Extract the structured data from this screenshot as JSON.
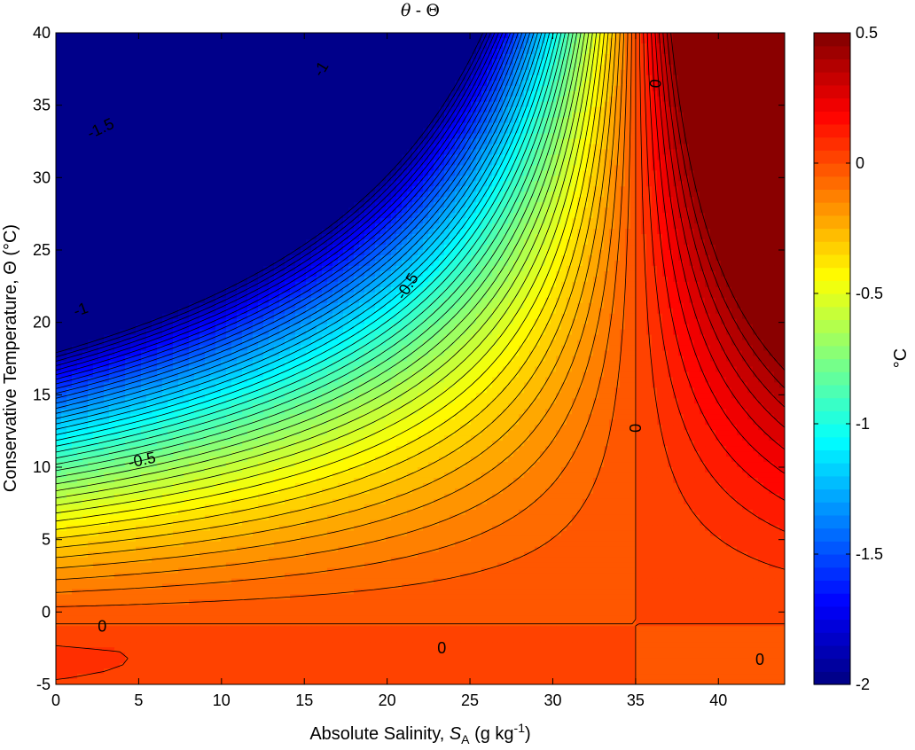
{
  "chart_data": {
    "type": "heatmap",
    "title_symbol_left": "θ",
    "title_separator": " - ",
    "title_symbol_right": "Θ",
    "xlabel_text": "Absolute Salinity, ",
    "xlabel_symbol": "S",
    "xlabel_subscript": "A",
    "xlabel_unit_open": " (g kg",
    "xlabel_superscript": "-1",
    "xlabel_unit_close": ")",
    "ylabel": "Conservative Temperature, Θ (°C)",
    "colorbar_label": "°C",
    "xlim": [
      0,
      44
    ],
    "ylim": [
      -5,
      40
    ],
    "clim": [
      -2,
      0.5
    ],
    "x_ticks": [
      "0",
      "5",
      "10",
      "15",
      "20",
      "25",
      "30",
      "35",
      "40"
    ],
    "y_ticks": [
      "-5",
      "0",
      "5",
      "10",
      "15",
      "20",
      "25",
      "30",
      "35",
      "40"
    ],
    "colorbar_ticks": [
      "-2",
      "-1.5",
      "-1",
      "-0.5",
      "0",
      "0.5"
    ],
    "colormap": "jet",
    "contour_interval": 0.05,
    "contour_labels": [
      {
        "text": "-1.5",
        "x": 2.7,
        "y": 33.4,
        "angle": -25
      },
      {
        "text": "-1",
        "x": 16.0,
        "y": 37.5,
        "angle": -58
      },
      {
        "text": "-1",
        "x": 1.5,
        "y": 20.9,
        "angle": -20
      },
      {
        "text": "-0.5",
        "x": 21.2,
        "y": 22.5,
        "angle": -58
      },
      {
        "text": "-0.5",
        "x": 5.2,
        "y": 10.5,
        "angle": -12
      },
      {
        "text": "0",
        "x": 36.2,
        "y": 36.5,
        "angle": -85
      },
      {
        "text": "0",
        "x": 35.0,
        "y": 12.7,
        "angle": -90
      },
      {
        "text": "0",
        "x": 2.8,
        "y": -1.0,
        "angle": 0
      },
      {
        "text": "0",
        "x": 23.3,
        "y": -2.5,
        "angle": 0
      },
      {
        "text": "0",
        "x": 42.5,
        "y": -3.3,
        "angle": 0
      }
    ]
  }
}
